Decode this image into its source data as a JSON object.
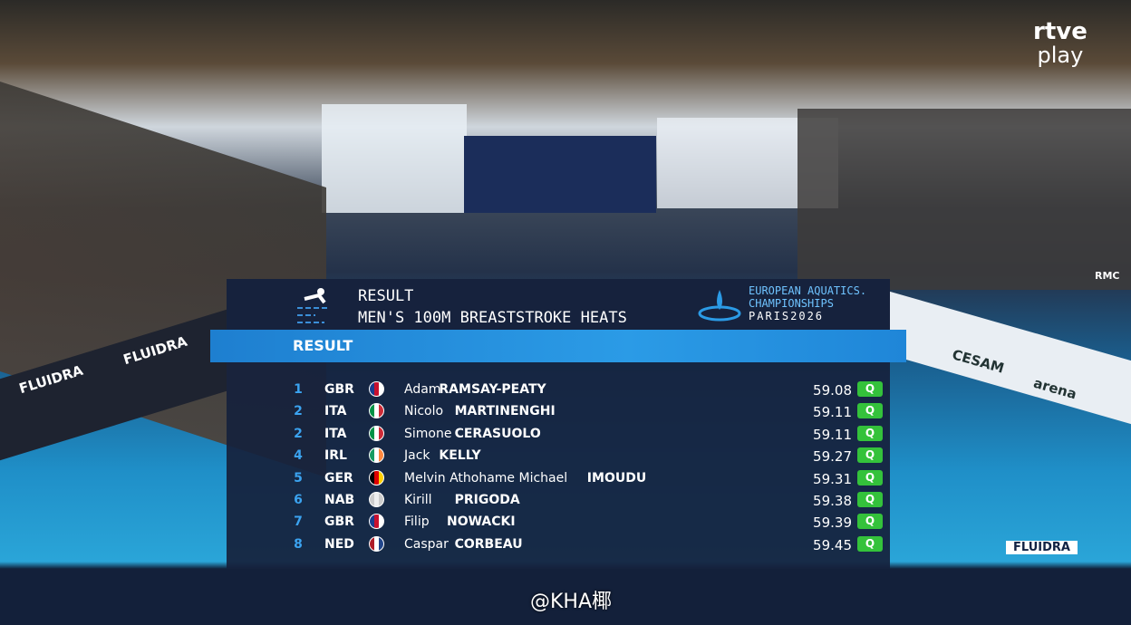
{
  "broadcaster": {
    "line1": "rtve",
    "line2": "play"
  },
  "graphic": {
    "label": "RESULT",
    "event": "MEN'S 100M BREASTSTROKE HEATS",
    "brand": {
      "line1": "EUROPEAN AQUATICS.",
      "line2": "CHAMPIONSHIPS",
      "line3": "PARIS2026"
    },
    "banner": "RESULT",
    "rows": [
      {
        "rank": 1,
        "nation": "GBR",
        "first": "Adam",
        "last": "RAMSAY-PEATY",
        "time": 59.08,
        "status": "Q"
      },
      {
        "rank": 2,
        "nation": "ITA",
        "first": "Nicolo",
        "last": "MARTINENGHI",
        "time": 59.11,
        "status": "Q"
      },
      {
        "rank": 2,
        "nation": "ITA",
        "first": "Simone",
        "last": "CERASUOLO",
        "time": 59.11,
        "status": "Q"
      },
      {
        "rank": 4,
        "nation": "IRL",
        "first": "Jack",
        "last": "KELLY",
        "time": 59.27,
        "status": "Q"
      },
      {
        "rank": 5,
        "nation": "GER",
        "first": "Melvin Athohame Michael",
        "last": "IMOUDU",
        "time": 59.31,
        "status": "Q"
      },
      {
        "rank": 6,
        "nation": "NAB",
        "first": "Kirill",
        "last": "PRIGODA",
        "time": 59.38,
        "status": "Q"
      },
      {
        "rank": 7,
        "nation": "GBR",
        "first": "Filip",
        "last": "NOWACKI",
        "time": 59.39,
        "status": "Q"
      },
      {
        "rank": 8,
        "nation": "NED",
        "first": "Caspar",
        "last": "CORBEAU",
        "time": 59.45,
        "status": "Q"
      }
    ]
  },
  "signage": {
    "left1": "FLUIDRA",
    "left2": "FLUIDRA",
    "right1": "CESAM",
    "right2": "arena",
    "right3": "RMC",
    "bottom": "FLUIDRA"
  },
  "watermark": "@KHA椰"
}
